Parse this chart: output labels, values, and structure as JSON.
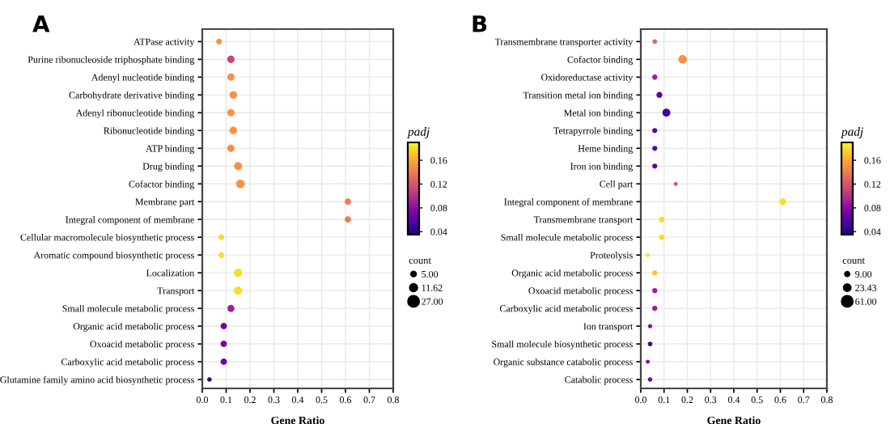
{
  "chart_data": [
    {
      "type": "bubble",
      "orientation": "horizontal",
      "title": "A",
      "xlabel": "Gene Ratio",
      "clabel": "padj",
      "legend_title": "count",
      "categories": [
        "ATPase activity",
        "Purine ribonucleoside triphosphate binding",
        "Adenyl nucleotide binding",
        "Carbohydrate derivative binding",
        "Adenyl ribonucleotide binding",
        "Ribonucleotide binding",
        "ATP binding",
        "Drug binding",
        "Cofactor binding",
        "Membrane part",
        "Integral component of membrane",
        "Cellular macromolecule biosynthetic process",
        "Aromatic compound biosynthetic process",
        "Localization",
        "Transport",
        "Small molecule metabolic process",
        "Organic acid metabolic process",
        "Oxoacid metabolic process",
        "Carboxylic acid metabolic process",
        "Glutamine family amino acid biosynthetic process"
      ],
      "values": [
        0.07,
        0.12,
        0.12,
        0.13,
        0.12,
        0.13,
        0.12,
        0.15,
        0.16,
        0.61,
        0.61,
        0.08,
        0.08,
        0.15,
        0.15,
        0.12,
        0.09,
        0.09,
        0.09,
        0.03
      ],
      "sizes": [
        8,
        13,
        13,
        14,
        13,
        14,
        13,
        16,
        18,
        10,
        10,
        8,
        8,
        16,
        16,
        12,
        10,
        10,
        10,
        5
      ],
      "cvalues": [
        0.15,
        0.11,
        0.15,
        0.15,
        0.15,
        0.15,
        0.15,
        0.15,
        0.15,
        0.14,
        0.14,
        0.18,
        0.18,
        0.18,
        0.18,
        0.09,
        0.07,
        0.07,
        0.07,
        0.04
      ],
      "xlim": [
        0,
        0.8
      ],
      "xticks": [
        {
          "value": 0,
          "label": "0.0"
        },
        0.1,
        0.2,
        0.3,
        0.4,
        0.5,
        0.6,
        0.7,
        0.8
      ],
      "clim": [
        0.035,
        0.19
      ],
      "cticks": [
        0.04,
        0.08,
        0.12,
        0.16
      ],
      "size_legend": [
        {
          "value": 5,
          "label": "5.00"
        },
        {
          "value": 11.62,
          "label": "11.62"
        },
        {
          "value": 27,
          "label": "27.00"
        }
      ],
      "grid": true
    },
    {
      "type": "bubble",
      "orientation": "horizontal",
      "title": "B",
      "xlabel": "Gene Ratio",
      "clabel": "padj",
      "legend_title": "count",
      "categories": [
        "Transmembrane transporter activity",
        "Cofactor binding",
        "Oxidoreductase activity",
        "Transition metal ion binding",
        "Metal ion binding",
        "Tetrapyrrole binding",
        "Heme binding",
        "Iron ion binding",
        "Cell part",
        "Integral component of membrane",
        "Transmembrane transport",
        "Small molecule metabolic process",
        "Proteolysis",
        "Organic acid metabolic process",
        "Oxoacid metabolic process",
        "Carboxylic acid metabolic process",
        "Ion transport",
        "Small molecule biosynthetic process",
        "Organic substance catabolic process",
        "Catabolic process"
      ],
      "values": [
        0.06,
        0.18,
        0.06,
        0.08,
        0.11,
        0.06,
        0.06,
        0.06,
        0.15,
        0.61,
        0.09,
        0.09,
        0.03,
        0.06,
        0.06,
        0.06,
        0.04,
        0.04,
        0.03,
        0.04
      ],
      "sizes": [
        12,
        40,
        15,
        20,
        35,
        14,
        14,
        14,
        9,
        25,
        18,
        18,
        9,
        15,
        15,
        15,
        10,
        12,
        9,
        11
      ],
      "cvalues": [
        0.13,
        0.15,
        0.09,
        0.06,
        0.05,
        0.06,
        0.06,
        0.06,
        0.12,
        0.18,
        0.18,
        0.18,
        0.18,
        0.17,
        0.09,
        0.09,
        0.08,
        0.05,
        0.08,
        0.07
      ],
      "xlim": [
        0,
        0.8
      ],
      "xticks": [
        {
          "value": 0,
          "label": "0.0"
        },
        0.1,
        0.2,
        0.3,
        0.4,
        0.5,
        0.6,
        0.7,
        0.8
      ],
      "clim": [
        0.035,
        0.19
      ],
      "cticks": [
        0.04,
        0.08,
        0.12,
        0.16
      ],
      "size_legend": [
        {
          "value": 9,
          "label": "9.00"
        },
        {
          "value": 23.43,
          "label": "23.43"
        },
        {
          "value": 61,
          "label": "61.00"
        }
      ],
      "grid": true
    }
  ]
}
